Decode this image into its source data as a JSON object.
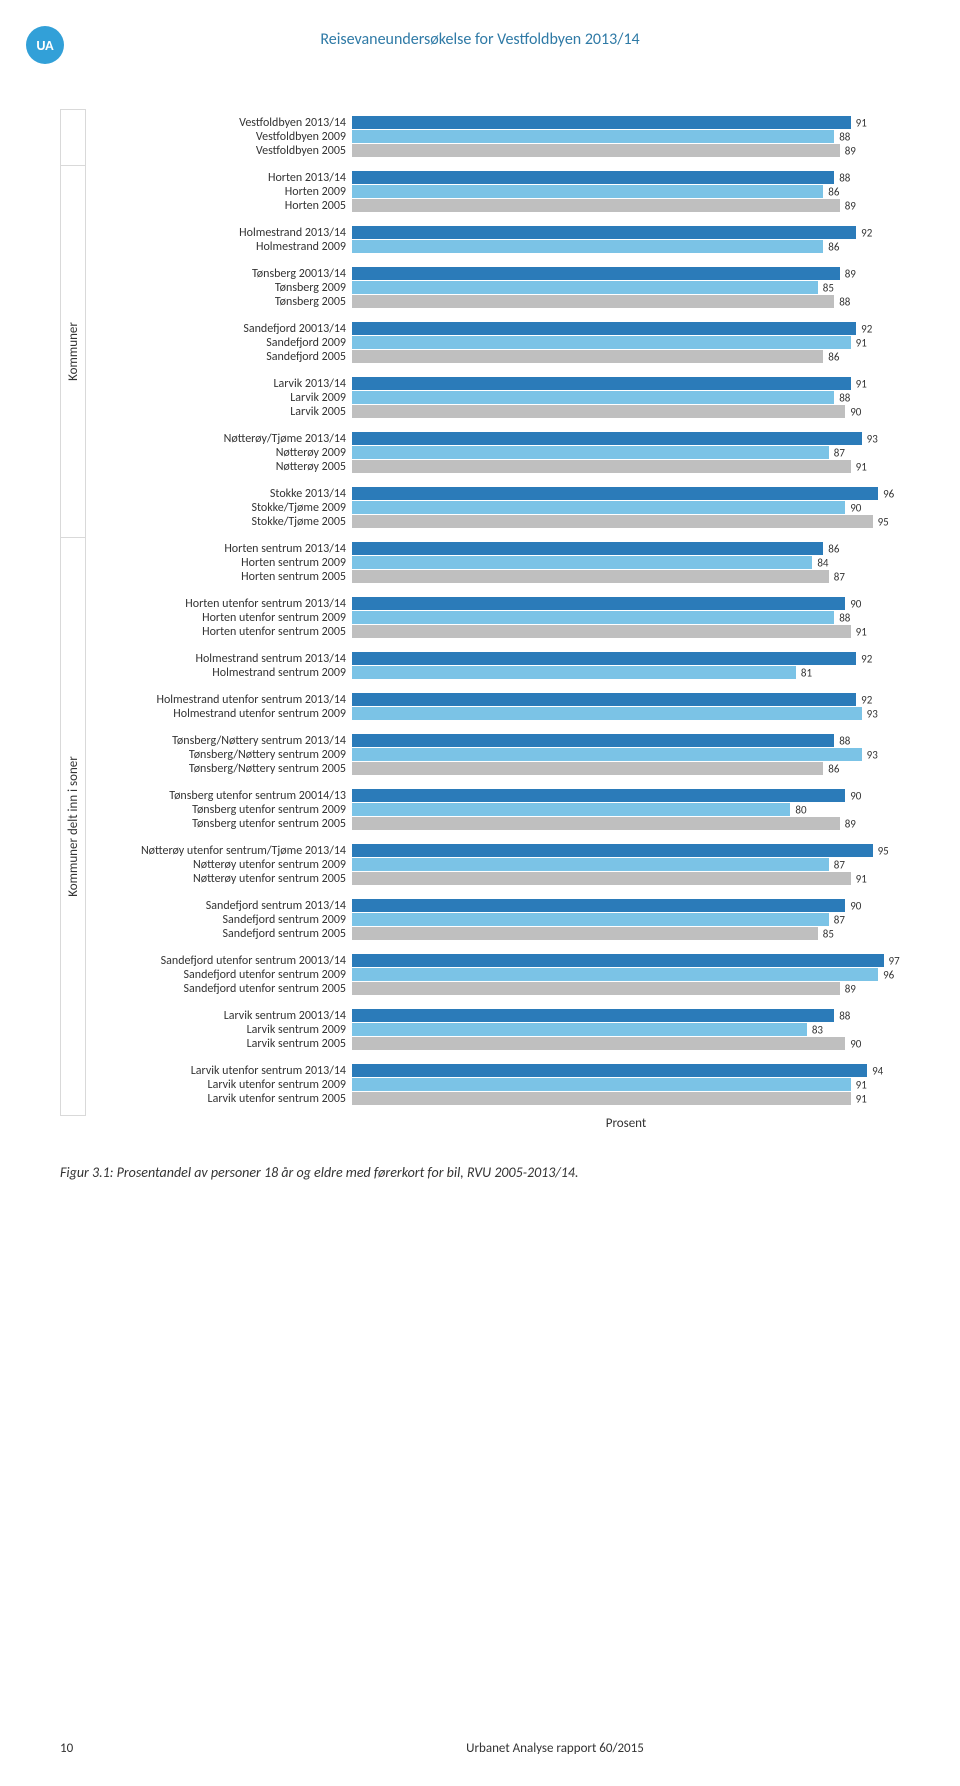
{
  "header": {
    "badge": "UA",
    "title": "Reisevaneundersøkelse for Vestfoldbyen 2013/14"
  },
  "chart": {
    "type": "horizontal-bar",
    "xmax": 100,
    "xaxis_label": "Prosent",
    "colors_by_year": {
      "2013": "#2b7bb9",
      "2009": "#7bc3e6",
      "2005": "#bfbfbf"
    },
    "value_fontsize": 11,
    "label_fontsize": 12,
    "sections": [
      {
        "id": "total",
        "label": "",
        "groups": [
          {
            "rows": [
              {
                "label": "Vestfoldbyen 2013/14",
                "value": 91,
                "year": "2013"
              },
              {
                "label": "Vestfoldbyen 2009",
                "value": 88,
                "year": "2009"
              },
              {
                "label": "Vestfoldbyen 2005",
                "value": 89,
                "year": "2005"
              }
            ]
          }
        ]
      },
      {
        "id": "kommuner",
        "label": "Kommuner",
        "groups": [
          {
            "rows": [
              {
                "label": "Horten 2013/14",
                "value": 88,
                "year": "2013"
              },
              {
                "label": "Horten 2009",
                "value": 86,
                "year": "2009"
              },
              {
                "label": "Horten 2005",
                "value": 89,
                "year": "2005"
              }
            ]
          },
          {
            "rows": [
              {
                "label": "Holmestrand 2013/14",
                "value": 92,
                "year": "2013"
              },
              {
                "label": "Holmestrand 2009",
                "value": 86,
                "year": "2009"
              }
            ]
          },
          {
            "rows": [
              {
                "label": "Tønsberg 20013/14",
                "value": 89,
                "year": "2013"
              },
              {
                "label": "Tønsberg 2009",
                "value": 85,
                "year": "2009"
              },
              {
                "label": "Tønsberg 2005",
                "value": 88,
                "year": "2005"
              }
            ]
          },
          {
            "rows": [
              {
                "label": "Sandefjord 20013/14",
                "value": 92,
                "year": "2013"
              },
              {
                "label": "Sandefjord 2009",
                "value": 91,
                "year": "2009"
              },
              {
                "label": "Sandefjord 2005",
                "value": 86,
                "year": "2005"
              }
            ]
          },
          {
            "rows": [
              {
                "label": "Larvik 2013/14",
                "value": 91,
                "year": "2013"
              },
              {
                "label": "Larvik 2009",
                "value": 88,
                "year": "2009"
              },
              {
                "label": "Larvik 2005",
                "value": 90,
                "year": "2005"
              }
            ]
          },
          {
            "rows": [
              {
                "label": "Nøtterøy/Tjøme 2013/14",
                "value": 93,
                "year": "2013"
              },
              {
                "label": "Nøtterøy 2009",
                "value": 87,
                "year": "2009"
              },
              {
                "label": "Nøtterøy 2005",
                "value": 91,
                "year": "2005"
              }
            ]
          },
          {
            "rows": [
              {
                "label": "Stokke 2013/14",
                "value": 96,
                "year": "2013"
              },
              {
                "label": "Stokke/Tjøme 2009",
                "value": 90,
                "year": "2009"
              },
              {
                "label": "Stokke/Tjøme 2005",
                "value": 95,
                "year": "2005"
              }
            ]
          }
        ]
      },
      {
        "id": "soner",
        "label": "Kommuner delt inn i soner",
        "groups": [
          {
            "rows": [
              {
                "label": "Horten sentrum 2013/14",
                "value": 86,
                "year": "2013"
              },
              {
                "label": "Horten sentrum 2009",
                "value": 84,
                "year": "2009"
              },
              {
                "label": "Horten sentrum 2005",
                "value": 87,
                "year": "2005"
              }
            ]
          },
          {
            "rows": [
              {
                "label": "Horten utenfor sentrum 2013/14",
                "value": 90,
                "year": "2013"
              },
              {
                "label": "Horten utenfor sentrum 2009",
                "value": 88,
                "year": "2009"
              },
              {
                "label": "Horten utenfor sentrum 2005",
                "value": 91,
                "year": "2005"
              }
            ]
          },
          {
            "rows": [
              {
                "label": "Holmestrand sentrum 2013/14",
                "value": 92,
                "year": "2013"
              },
              {
                "label": "Holmestrand sentrum 2009",
                "value": 81,
                "year": "2009"
              }
            ]
          },
          {
            "rows": [
              {
                "label": "Holmestrand utenfor sentrum 2013/14",
                "value": 92,
                "year": "2013"
              },
              {
                "label": "Holmestrand utenfor sentrum 2009",
                "value": 93,
                "year": "2009"
              }
            ]
          },
          {
            "rows": [
              {
                "label": "Tønsberg/Nøttery sentrum 2013/14",
                "value": 88,
                "year": "2013"
              },
              {
                "label": "Tønsberg/Nøttery sentrum 2009",
                "value": 93,
                "year": "2009"
              },
              {
                "label": "Tønsberg/Nøttery sentrum 2005",
                "value": 86,
                "year": "2005"
              }
            ]
          },
          {
            "rows": [
              {
                "label": "Tønsberg utenfor sentrum 20014/13",
                "value": 90,
                "year": "2013"
              },
              {
                "label": "Tønsberg utenfor sentrum 2009",
                "value": 80,
                "year": "2009"
              },
              {
                "label": "Tønsberg utenfor sentrum 2005",
                "value": 89,
                "year": "2005"
              }
            ]
          },
          {
            "rows": [
              {
                "label": "Nøtterøy utenfor sentrum/Tjøme 2013/14",
                "value": 95,
                "year": "2013"
              },
              {
                "label": "Nøtterøy utenfor sentrum 2009",
                "value": 87,
                "year": "2009"
              },
              {
                "label": "Nøtterøy utenfor sentrum 2005",
                "value": 91,
                "year": "2005"
              }
            ]
          },
          {
            "rows": [
              {
                "label": "Sandefjord sentrum 2013/14",
                "value": 90,
                "year": "2013"
              },
              {
                "label": "Sandefjord sentrum 2009",
                "value": 87,
                "year": "2009"
              },
              {
                "label": "Sandefjord sentrum 2005",
                "value": 85,
                "year": "2005"
              }
            ]
          },
          {
            "rows": [
              {
                "label": "Sandefjord utenfor sentrum 20013/14",
                "value": 97,
                "year": "2013"
              },
              {
                "label": "Sandefjord utenfor sentrum 2009",
                "value": 96,
                "year": "2009"
              },
              {
                "label": "Sandefjord utenfor sentrum 2005",
                "value": 89,
                "year": "2005"
              }
            ]
          },
          {
            "rows": [
              {
                "label": "Larvik sentrum 20013/14",
                "value": 88,
                "year": "2013"
              },
              {
                "label": "Larvik sentrum 2009",
                "value": 83,
                "year": "2009"
              },
              {
                "label": "Larvik sentrum 2005",
                "value": 90,
                "year": "2005"
              }
            ]
          },
          {
            "rows": [
              {
                "label": "Larvik utenfor sentrum 2013/14",
                "value": 94,
                "year": "2013"
              },
              {
                "label": "Larvik utenfor sentrum 2009",
                "value": 91,
                "year": "2009"
              },
              {
                "label": "Larvik utenfor sentrum 2005",
                "value": 91,
                "year": "2005"
              }
            ]
          }
        ]
      }
    ]
  },
  "caption": "Figur 3.1: Prosentandel av personer 18 år og eldre med førerkort for bil, RVU 2005-2013/14.",
  "footer": {
    "page_number": "10",
    "text": "Urbanet Analyse rapport 60/2015"
  }
}
